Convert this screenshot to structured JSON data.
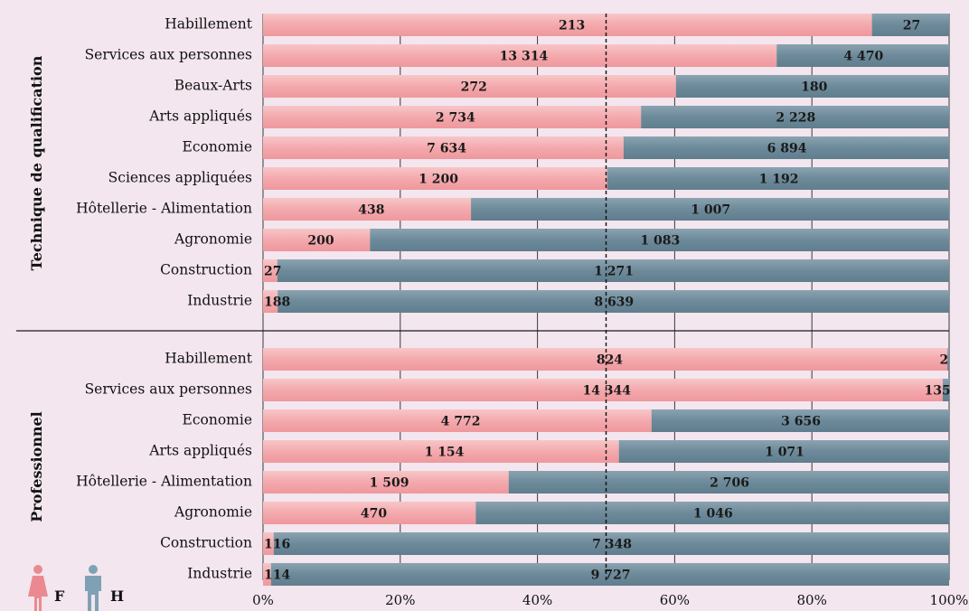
{
  "chart_data": {
    "type": "bar",
    "stacked": "percent",
    "orientation": "horizontal",
    "xlim": [
      0,
      100
    ],
    "x_ticks": [
      "0%",
      "20%",
      "40%",
      "60%",
      "80%",
      "100%"
    ],
    "reference_line": 50,
    "grid": true,
    "legend": {
      "placement": "bottom-left",
      "entries": [
        {
          "label": "F",
          "icon": "female-icon",
          "color": "#f4a9ad"
        },
        {
          "label": "H",
          "icon": "male-icon",
          "color": "#6d8a9a"
        }
      ]
    },
    "colors": {
      "female_bar": "#f4a9ad",
      "male_bar": "#6d8a9a",
      "female_icon": "#ea8a90",
      "male_icon": "#7ea1b5"
    },
    "groups": [
      {
        "name": "Technique de qualification",
        "categories": [
          "Habillement",
          "Services aux personnes",
          "Beaux-Arts",
          "Arts appliqués",
          "Economie",
          "Sciences appliquées",
          "Hôtellerie - Alimentation",
          "Agronomie",
          "Construction",
          "Industrie"
        ],
        "series": [
          {
            "name": "F",
            "values": [
              213,
              13314,
              272,
              2734,
              7634,
              1200,
              438,
              200,
              27,
              188
            ],
            "labels": [
              "213",
              "13 314",
              "272",
              "2 734",
              "7 634",
              "1 200",
              "438",
              "200",
              "27",
              "188"
            ]
          },
          {
            "name": "H",
            "values": [
              27,
              4470,
              180,
              2228,
              6894,
              1192,
              1007,
              1083,
              1271,
              8639
            ],
            "labels": [
              "27",
              "4 470",
              "180",
              "2 228",
              "6 894",
              "1 192",
              "1 007",
              "1 083",
              "1 271",
              "8 639"
            ]
          }
        ]
      },
      {
        "name": "Professionnel",
        "categories": [
          "Habillement",
          "Services aux personnes",
          "Economie",
          "Arts appliqués",
          "Hôtellerie - Alimentation",
          "Agronomie",
          "Construction",
          "Industrie"
        ],
        "series": [
          {
            "name": "F",
            "values": [
              824,
              14344,
              4772,
              1154,
              1509,
              470,
              116,
              114
            ],
            "labels": [
              "824",
              "14 344",
              "4 772",
              "1 154",
              "1 509",
              "470",
              "116",
              "114"
            ]
          },
          {
            "name": "H",
            "values": [
              2,
              135,
              3656,
              1071,
              2706,
              1046,
              7348,
              9727
            ],
            "labels": [
              "2",
              "135",
              "3 656",
              "1 071",
              "2 706",
              "1 046",
              "7 348",
              "9 727"
            ]
          }
        ]
      }
    ]
  }
}
